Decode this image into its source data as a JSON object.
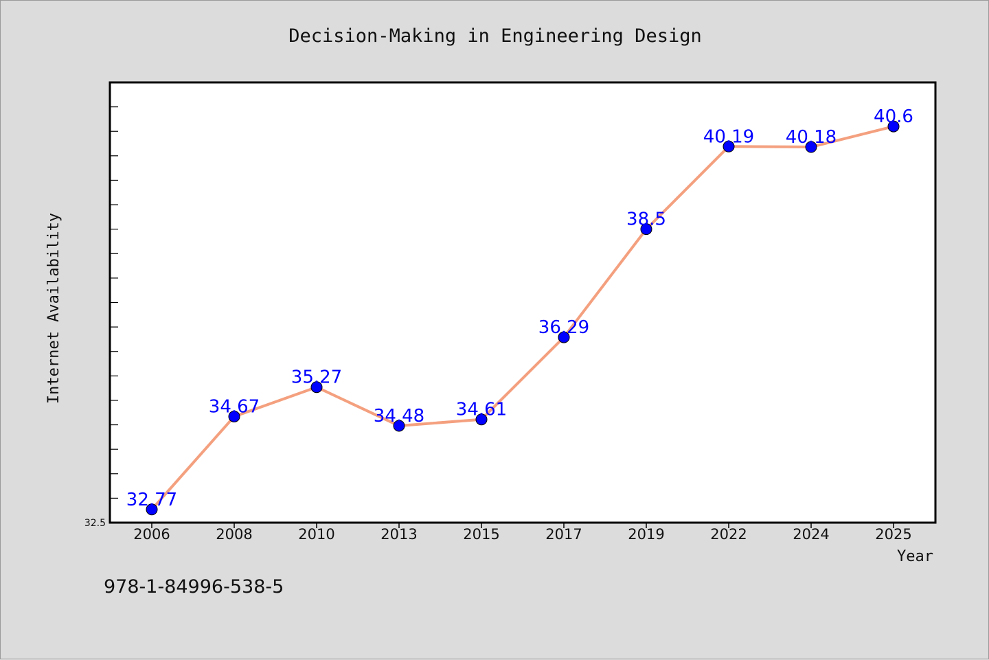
{
  "chart_data": {
    "type": "line",
    "title": "Decision-Making in Engineering Design",
    "xlabel": "Year",
    "ylabel": "Internet Availability",
    "categories": [
      "2006",
      "2008",
      "2010",
      "2013",
      "2015",
      "2017",
      "2019",
      "2022",
      "2024",
      "2025"
    ],
    "series": [
      {
        "values": [
          32.77,
          34.67,
          35.27,
          34.48,
          34.61,
          36.29,
          38.5,
          40.19,
          40.18,
          40.6
        ],
        "labels": [
          "32.77",
          "34.67",
          "35.27",
          "34.48",
          "34.61",
          "36.29",
          "38.5",
          "40.19",
          "40.18",
          "40.6"
        ]
      }
    ],
    "ylim": [
      32.5,
      41.5
    ],
    "y_tick_labels": [
      "32.5"
    ],
    "grid": false,
    "colors": {
      "line": "#f4a07f",
      "marker": "#0000ff",
      "data_label": "#0000ff",
      "plot_background": "#ffffff",
      "figure_background": "#dcdcdc"
    }
  },
  "footer": {
    "isbn": "978-1-84996-538-5"
  }
}
